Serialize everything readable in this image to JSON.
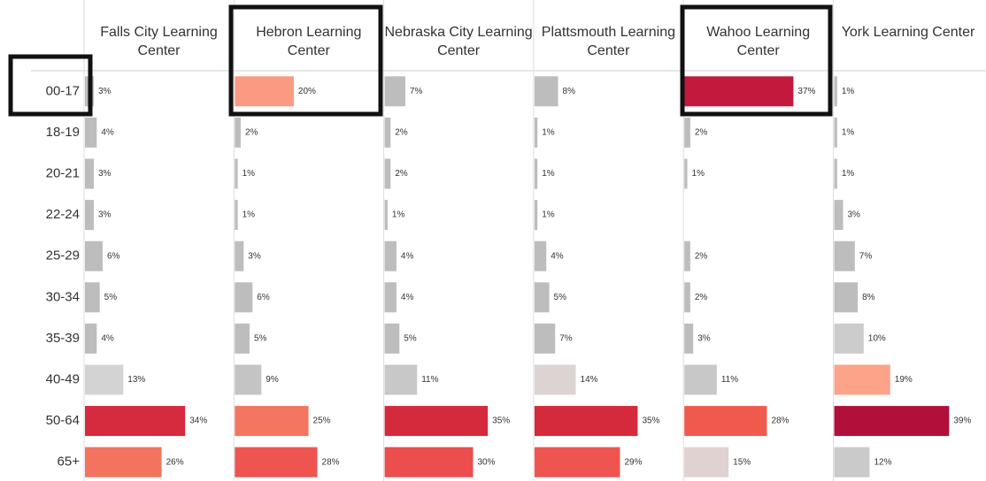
{
  "categories": [
    "00-17",
    "18-19",
    "20-21",
    "22-24",
    "25-29",
    "30-34",
    "35-39",
    "40-49",
    "50-64",
    "65+"
  ],
  "chart_data": [
    {
      "type": "bar",
      "title": "Falls City Learning Center",
      "values": [
        3,
        4,
        3,
        3,
        6,
        5,
        4,
        13,
        34,
        26
      ],
      "value_labels": [
        "3%",
        "4%",
        "3%",
        "3%",
        "6%",
        "5%",
        "4%",
        "13%",
        "34%",
        "26%"
      ],
      "colors": [
        "#bdbdbd",
        "#bdbdbd",
        "#bdbdbd",
        "#bdbdbd",
        "#bdbdbd",
        "#bdbdbd",
        "#bdbdbd",
        "#d3d3d3",
        "#d62a3f",
        "#f4735e"
      ]
    },
    {
      "type": "bar",
      "title": "Hebron Learning Center",
      "values": [
        20,
        2,
        1,
        1,
        3,
        6,
        5,
        9,
        25,
        28
      ],
      "value_labels": [
        "20%",
        "2%",
        "1%",
        "1%",
        "3%",
        "6%",
        "5%",
        "9%",
        "25%",
        "28%"
      ],
      "colors": [
        "#fb9a82",
        "#bdbdbd",
        "#bdbdbd",
        "#bdbdbd",
        "#bdbdbd",
        "#bdbdbd",
        "#bdbdbd",
        "#c4c4c4",
        "#f47560",
        "#ee5550"
      ]
    },
    {
      "type": "bar",
      "title": "Nebraska City Learning Center",
      "values": [
        7,
        2,
        2,
        1,
        4,
        4,
        5,
        11,
        35,
        30
      ],
      "value_labels": [
        "7%",
        "2%",
        "2%",
        "1%",
        "4%",
        "4%",
        "5%",
        "11%",
        "35%",
        "30%"
      ],
      "colors": [
        "#bdbdbd",
        "#bdbdbd",
        "#bdbdbd",
        "#bdbdbd",
        "#bdbdbd",
        "#bdbdbd",
        "#bdbdbd",
        "#c8c8c8",
        "#d42a3b",
        "#ec4d4d"
      ]
    },
    {
      "type": "bar",
      "title": "Plattsmouth Learning Center",
      "values": [
        8,
        1,
        1,
        1,
        4,
        5,
        7,
        14,
        35,
        29
      ],
      "value_labels": [
        "8%",
        "1%",
        "1%",
        "1%",
        "4%",
        "5%",
        "7%",
        "14%",
        "35%",
        "29%"
      ],
      "colors": [
        "#bdbdbd",
        "#bdbdbd",
        "#bdbdbd",
        "#bdbdbd",
        "#bdbdbd",
        "#bdbdbd",
        "#bdbdbd",
        "#dbd4d2",
        "#d42a3b",
        "#ee5550"
      ]
    },
    {
      "type": "bar",
      "title": "Wahoo Learning Center",
      "values": [
        37,
        2,
        1,
        null,
        2,
        2,
        3,
        11,
        28,
        15
      ],
      "value_labels": [
        "37%",
        "2%",
        "1%",
        null,
        "2%",
        "2%",
        "3%",
        "11%",
        "28%",
        "15%"
      ],
      "colors": [
        "#c2193d",
        "#bdbdbd",
        "#bdbdbd",
        null,
        "#bdbdbd",
        "#bdbdbd",
        "#bdbdbd",
        "#c8c8c8",
        "#f05a4d",
        "#e0d2d0"
      ]
    },
    {
      "type": "bar",
      "title": "York Learning Center",
      "values": [
        1,
        1,
        1,
        3,
        7,
        8,
        10,
        19,
        39,
        12
      ],
      "value_labels": [
        "1%",
        "1%",
        "1%",
        "3%",
        "7%",
        "8%",
        "10%",
        "19%",
        "39%",
        "12%"
      ],
      "colors": [
        "#bdbdbd",
        "#bdbdbd",
        "#bdbdbd",
        "#bdbdbd",
        "#bdbdbd",
        "#bdbdbd",
        "#cccccc",
        "#fca38a",
        "#b0103a",
        "#cacaca"
      ]
    }
  ]
}
